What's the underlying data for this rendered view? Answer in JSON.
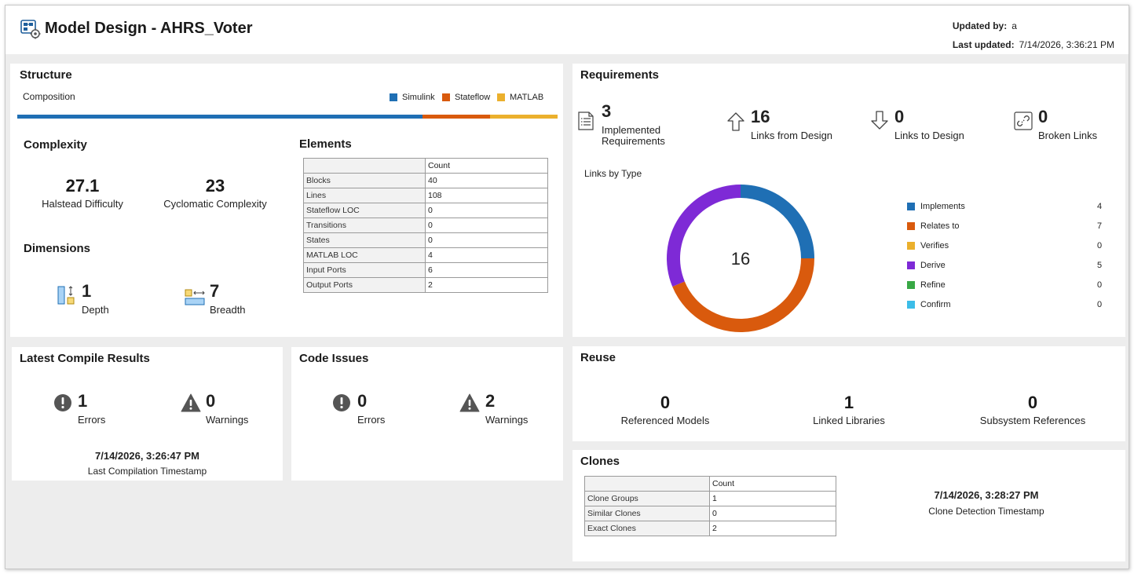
{
  "header": {
    "title": "Model Design - AHRS_Voter",
    "updated_by_label": "Updated by:",
    "updated_by_value": "a",
    "last_updated_label": "Last updated:",
    "last_updated_value": "7/14/2026, 3:36:21 PM"
  },
  "structure": {
    "title": "Structure",
    "composition_label": "Composition",
    "legend": [
      {
        "label": "Simulink",
        "color": "#1f6fb4"
      },
      {
        "label": "Stateflow",
        "color": "#d95a0d"
      },
      {
        "label": "MATLAB",
        "color": "#ebb02d"
      }
    ],
    "composition_fractions": [
      0.75,
      0.125,
      0.125
    ],
    "complexity_title": "Complexity",
    "halstead_value": "27.1",
    "halstead_label": "Halstead Difficulty",
    "cyclomatic_value": "23",
    "cyclomatic_label": "Cyclomatic Complexity",
    "dimensions_title": "Dimensions",
    "depth_value": "1",
    "depth_label": "Depth",
    "breadth_value": "7",
    "breadth_label": "Breadth",
    "elements_title": "Elements",
    "elements_header": "Count",
    "elements": [
      {
        "name": "Blocks",
        "count": "40"
      },
      {
        "name": "Lines",
        "count": "108"
      },
      {
        "name": "Stateflow LOC",
        "count": "0"
      },
      {
        "name": "Transitions",
        "count": "0"
      },
      {
        "name": "States",
        "count": "0"
      },
      {
        "name": "MATLAB LOC",
        "count": "4"
      },
      {
        "name": "Input Ports",
        "count": "6"
      },
      {
        "name": "Output Ports",
        "count": "2"
      }
    ]
  },
  "requirements": {
    "title": "Requirements",
    "implemented_value": "3",
    "implemented_label": "Implemented Requirements",
    "links_from_value": "16",
    "links_from_label": "Links from Design",
    "links_to_value": "0",
    "links_to_label": "Links to Design",
    "broken_value": "0",
    "broken_label": "Broken Links",
    "links_by_type_title": "Links by Type",
    "donut_total": "16",
    "types": [
      {
        "label": "Implements",
        "count": "4",
        "value": 4,
        "color": "#1f6fb4"
      },
      {
        "label": "Relates to",
        "count": "7",
        "value": 7,
        "color": "#d95a0d"
      },
      {
        "label": "Verifies",
        "count": "0",
        "value": 0,
        "color": "#ebb02d"
      },
      {
        "label": "Derive",
        "count": "5",
        "value": 5,
        "color": "#7e2ad6"
      },
      {
        "label": "Refine",
        "count": "0",
        "value": 0,
        "color": "#38a845"
      },
      {
        "label": "Confirm",
        "count": "0",
        "value": 0,
        "color": "#3cbde8"
      }
    ]
  },
  "compile": {
    "title": "Latest Compile Results",
    "errors_value": "1",
    "errors_label": "Errors",
    "warnings_value": "0",
    "warnings_label": "Warnings",
    "timestamp": "7/14/2026, 3:26:47 PM",
    "timestamp_label": "Last Compilation Timestamp"
  },
  "code_issues": {
    "title": "Code Issues",
    "errors_value": "0",
    "errors_label": "Errors",
    "warnings_value": "2",
    "warnings_label": "Warnings"
  },
  "reuse": {
    "title": "Reuse",
    "referenced_value": "0",
    "referenced_label": "Referenced Models",
    "linked_value": "1",
    "linked_label": "Linked Libraries",
    "subsystem_value": "0",
    "subsystem_label": "Subsystem References"
  },
  "clones": {
    "title": "Clones",
    "header": "Count",
    "rows": [
      {
        "name": "Clone Groups",
        "count": "1"
      },
      {
        "name": "Similar Clones",
        "count": "0"
      },
      {
        "name": "Exact Clones",
        "count": "2"
      }
    ],
    "timestamp": "7/14/2026, 3:28:27 PM",
    "timestamp_label": "Clone Detection Timestamp"
  }
}
